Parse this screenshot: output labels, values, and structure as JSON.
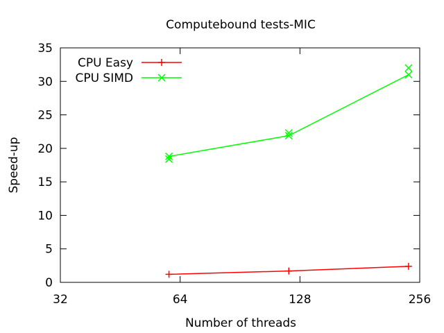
{
  "chart_data": {
    "type": "line",
    "title": "Computebound tests-MIC",
    "xlabel": "Number of threads",
    "ylabel": "Speed-up",
    "x_scale": "log2",
    "xlim": [
      32,
      256
    ],
    "ylim": [
      0,
      35
    ],
    "x_ticks": [
      32,
      64,
      128,
      256
    ],
    "y_ticks": [
      0,
      5,
      10,
      15,
      20,
      25,
      30,
      35
    ],
    "x_tick_labels": [
      "32",
      "64",
      "128",
      "256"
    ],
    "y_tick_labels": [
      "0",
      "5",
      "10",
      "15",
      "20",
      "25",
      "30",
      "35"
    ],
    "legend_position": "top-left",
    "series": [
      {
        "name": "CPU Easy",
        "color": "#ff0000",
        "marker": "plus",
        "x": [
          60,
          120,
          240
        ],
        "y": [
          1.2,
          1.7,
          2.4
        ],
        "points": [
          {
            "x": 60,
            "y": 1.2
          },
          {
            "x": 120,
            "y": 1.7
          },
          {
            "x": 240,
            "y": 2.4
          }
        ]
      },
      {
        "name": "CPU SIMD",
        "color": "#00ff00",
        "marker": "cross",
        "x": [
          60,
          120,
          240
        ],
        "y": [
          18.8,
          21.9,
          31.0
        ],
        "points": [
          {
            "x": 60,
            "y": 18.8
          },
          {
            "x": 60,
            "y": 18.4
          },
          {
            "x": 120,
            "y": 21.9
          },
          {
            "x": 120,
            "y": 22.3
          },
          {
            "x": 240,
            "y": 31.0
          },
          {
            "x": 240,
            "y": 32.0
          }
        ]
      }
    ]
  }
}
